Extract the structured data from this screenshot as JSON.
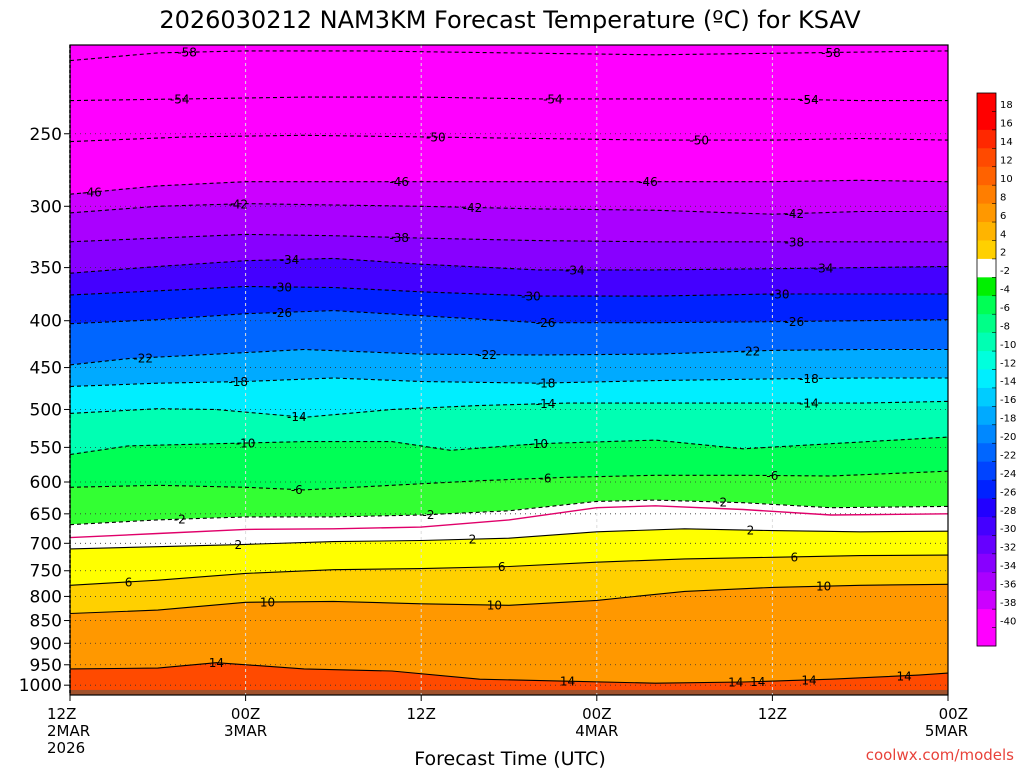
{
  "chart_data": {
    "type": "heatmap",
    "title": "2026030212 NAM3KM Forecast Temperature (ºC) for KSAV",
    "xlabel": "Forecast Time (UTC)",
    "credit": "coolwx.com/models",
    "x_ticks": [
      {
        "hour": 0,
        "lines": [
          "12Z",
          "2MAR",
          "2026"
        ]
      },
      {
        "hour": 12,
        "lines": [
          "00Z",
          "3MAR"
        ]
      },
      {
        "hour": 24,
        "lines": [
          "12Z"
        ]
      },
      {
        "hour": 36,
        "lines": [
          "00Z",
          "4MAR"
        ]
      },
      {
        "hour": 48,
        "lines": [
          "12Z"
        ]
      },
      {
        "hour": 60,
        "lines": [
          "00Z",
          "5MAR"
        ]
      }
    ],
    "xlim": [
      0,
      60
    ],
    "ylim": [
      200,
      1025
    ],
    "y_ticks": [
      250,
      300,
      350,
      400,
      450,
      500,
      550,
      600,
      650,
      700,
      750,
      800,
      850,
      900,
      950,
      1000
    ],
    "colorbar_labels": [
      "18",
      "16",
      "14",
      "12",
      "10",
      "8",
      "6",
      "4",
      "2",
      "-2",
      "-4",
      "-6",
      "-8",
      "-10",
      "-12",
      "-14",
      "-16",
      "-18",
      "-20",
      "-22",
      "-24",
      "-26",
      "-28",
      "-30",
      "-32",
      "-34",
      "-36",
      "-38",
      "-40"
    ],
    "colors": {
      "18": "#ff0000",
      "16": "#ff2800",
      "14": "#ff4a00",
      "12": "#ff6200",
      "10": "#ff7e00",
      "8": "#ff9800",
      "6": "#ffb400",
      "4": "#ffd000",
      "2": "#ffff00",
      "0": "#ffffff",
      "-2": "#33ff33",
      "-4": "#00f000",
      "-6": "#00ff55",
      "-8": "#00ff88",
      "-10": "#00ffb3",
      "-12": "#00ffdd",
      "-14": "#00eeff",
      "-16": "#00ccff",
      "-18": "#00aaff",
      "-20": "#0088ff",
      "-22": "#0066ff",
      "-24": "#0044ff",
      "-26": "#0022ff",
      "-28": "#2200ff",
      "-30": "#4400ff",
      "-32": "#6600ff",
      "-34": "#8800ff",
      "-36": "#aa00ff",
      "-38": "#cc00ff",
      "-40": "#ff00ff",
      "surface": "#a0522d",
      "freezing_line": "#e0006a"
    },
    "isotherms": [
      {
        "value": -58,
        "profile": [
          [
            0,
            208
          ],
          [
            6,
            204
          ],
          [
            12,
            203
          ],
          [
            20,
            203
          ],
          [
            30,
            204
          ],
          [
            40,
            205
          ],
          [
            50,
            204
          ],
          [
            60,
            203
          ]
        ],
        "labels": [
          [
            8,
            -58
          ],
          [
            52,
            -58
          ]
        ]
      },
      {
        "value": -54,
        "profile": [
          [
            0,
            230
          ],
          [
            8,
            229
          ],
          [
            16,
            228
          ],
          [
            24,
            228
          ],
          [
            32,
            229
          ],
          [
            40,
            229
          ],
          [
            48,
            229
          ],
          [
            54,
            230
          ],
          [
            60,
            230
          ]
        ],
        "labels": [
          [
            7.5,
            -54
          ],
          [
            33,
            -54
          ],
          [
            50.5,
            -54
          ]
        ]
      },
      {
        "value": -50,
        "profile": [
          [
            0,
            255
          ],
          [
            8,
            252
          ],
          [
            16,
            251
          ],
          [
            24,
            252
          ],
          [
            32,
            253
          ],
          [
            40,
            254
          ],
          [
            48,
            254
          ],
          [
            54,
            253
          ],
          [
            60,
            254
          ]
        ],
        "labels": [
          [
            25,
            -50
          ],
          [
            43,
            -50
          ]
        ]
      },
      {
        "value": -46,
        "profile": [
          [
            0,
            291
          ],
          [
            6,
            285
          ],
          [
            12,
            282
          ],
          [
            18,
            282
          ],
          [
            24,
            282
          ],
          [
            32,
            282
          ],
          [
            40,
            282
          ],
          [
            48,
            282
          ],
          [
            54,
            281
          ],
          [
            60,
            282
          ]
        ],
        "labels": [
          [
            1.5,
            -46
          ],
          [
            22.5,
            -46
          ],
          [
            39.5,
            -46
          ]
        ]
      },
      {
        "value": -42,
        "profile": [
          [
            0,
            305
          ],
          [
            6,
            300
          ],
          [
            12,
            298
          ],
          [
            18,
            299
          ],
          [
            24,
            300
          ],
          [
            32,
            302
          ],
          [
            40,
            303
          ],
          [
            48,
            306
          ],
          [
            54,
            304
          ],
          [
            60,
            304
          ]
        ],
        "labels": [
          [
            11.5,
            -42
          ],
          [
            27.5,
            -42
          ],
          [
            49.5,
            -42
          ]
        ]
      },
      {
        "value": -38,
        "profile": [
          [
            0,
            328
          ],
          [
            6,
            325
          ],
          [
            12,
            322
          ],
          [
            18,
            323
          ],
          [
            24,
            325
          ],
          [
            32,
            327
          ],
          [
            40,
            328
          ],
          [
            48,
            328
          ],
          [
            54,
            328
          ],
          [
            60,
            328
          ]
        ],
        "labels": [
          [
            22.5,
            -38
          ],
          [
            49.5,
            -38
          ]
        ]
      },
      {
        "value": -34,
        "profile": [
          [
            0,
            355
          ],
          [
            6,
            349
          ],
          [
            12,
            344
          ],
          [
            18,
            342
          ],
          [
            24,
            347
          ],
          [
            32,
            352
          ],
          [
            40,
            352
          ],
          [
            48,
            351
          ],
          [
            54,
            350
          ],
          [
            60,
            349
          ]
        ],
        "labels": [
          [
            15,
            -34
          ],
          [
            34.5,
            -34
          ],
          [
            51.5,
            -34
          ]
        ]
      },
      {
        "value": -30,
        "profile": [
          [
            0,
            375
          ],
          [
            6,
            371
          ],
          [
            12,
            367
          ],
          [
            18,
            368
          ],
          [
            24,
            372
          ],
          [
            32,
            376
          ],
          [
            40,
            376
          ],
          [
            48,
            374
          ],
          [
            54,
            374
          ],
          [
            60,
            374
          ]
        ],
        "labels": [
          [
            14.5,
            -30
          ],
          [
            31.5,
            -30
          ],
          [
            48.5,
            -30
          ]
        ]
      },
      {
        "value": -26,
        "profile": [
          [
            0,
            403
          ],
          [
            6,
            399
          ],
          [
            12,
            393
          ],
          [
            18,
            390
          ],
          [
            24,
            395
          ],
          [
            32,
            402
          ],
          [
            40,
            402
          ],
          [
            48,
            401
          ],
          [
            54,
            400
          ],
          [
            60,
            399
          ]
        ],
        "labels": [
          [
            14.5,
            -26
          ],
          [
            32.5,
            -26
          ],
          [
            49.5,
            -26
          ]
        ]
      },
      {
        "value": -22,
        "profile": [
          [
            0,
            447
          ],
          [
            4,
            440
          ],
          [
            10,
            435
          ],
          [
            16,
            430
          ],
          [
            24,
            435
          ],
          [
            32,
            436
          ],
          [
            40,
            435
          ],
          [
            48,
            431
          ],
          [
            54,
            430
          ],
          [
            60,
            430
          ]
        ],
        "labels": [
          [
            5,
            -22
          ],
          [
            28.5,
            -22
          ],
          [
            46.5,
            -22
          ]
        ]
      },
      {
        "value": -18,
        "profile": [
          [
            0,
            472
          ],
          [
            6,
            468
          ],
          [
            12,
            466
          ],
          [
            18,
            462
          ],
          [
            24,
            466
          ],
          [
            32,
            468
          ],
          [
            40,
            465
          ],
          [
            48,
            463
          ],
          [
            54,
            462
          ],
          [
            60,
            462
          ]
        ],
        "labels": [
          [
            11.5,
            -18
          ],
          [
            32.5,
            -18
          ],
          [
            50.5,
            -18
          ]
        ]
      },
      {
        "value": -14,
        "profile": [
          [
            0,
            505
          ],
          [
            6,
            499
          ],
          [
            10,
            500
          ],
          [
            16,
            510
          ],
          [
            22,
            500
          ],
          [
            28,
            495
          ],
          [
            34,
            492
          ],
          [
            40,
            492
          ],
          [
            48,
            492
          ],
          [
            54,
            492
          ],
          [
            60,
            490
          ]
        ],
        "labels": [
          [
            15.5,
            -14
          ],
          [
            32.5,
            -14
          ],
          [
            50.5,
            -14
          ]
        ]
      },
      {
        "value": -10,
        "profile": [
          [
            0,
            560
          ],
          [
            4,
            548
          ],
          [
            10,
            545
          ],
          [
            16,
            542
          ],
          [
            22,
            542
          ],
          [
            26,
            554
          ],
          [
            32,
            545
          ],
          [
            40,
            540
          ],
          [
            46,
            552
          ],
          [
            52,
            545
          ],
          [
            60,
            536
          ]
        ],
        "labels": [
          [
            12,
            -10
          ],
          [
            32,
            -10
          ]
        ]
      },
      {
        "value": -6,
        "profile": [
          [
            0,
            608
          ],
          [
            6,
            605
          ],
          [
            12,
            608
          ],
          [
            16,
            612
          ],
          [
            22,
            605
          ],
          [
            28,
            598
          ],
          [
            34,
            593
          ],
          [
            40,
            590
          ],
          [
            46,
            590
          ],
          [
            52,
            591
          ],
          [
            60,
            584
          ]
        ],
        "labels": [
          [
            15.5,
            -6
          ],
          [
            32.5,
            -6
          ],
          [
            48,
            -6
          ]
        ]
      },
      {
        "value": -2,
        "profile": [
          [
            0,
            668
          ],
          [
            6,
            660
          ],
          [
            12,
            655
          ],
          [
            18,
            655
          ],
          [
            24,
            652
          ],
          [
            30,
            645
          ],
          [
            36,
            630
          ],
          [
            40,
            628
          ],
          [
            46,
            632
          ],
          [
            52,
            640
          ],
          [
            60,
            638
          ]
        ],
        "labels": [
          [
            7.5,
            -2
          ],
          [
            24.5,
            -2
          ],
          [
            44.5,
            -2
          ]
        ]
      },
      {
        "value": 2,
        "profile": [
          [
            0,
            710
          ],
          [
            6,
            706
          ],
          [
            12,
            702
          ],
          [
            18,
            697
          ],
          [
            24,
            695
          ],
          [
            30,
            691
          ],
          [
            36,
            680
          ],
          [
            42,
            675
          ],
          [
            48,
            678
          ],
          [
            54,
            680
          ],
          [
            60,
            679
          ]
        ],
        "labels": [
          [
            11.5,
            2
          ],
          [
            27.5,
            2
          ],
          [
            46.5,
            2
          ]
        ]
      },
      {
        "value": 6,
        "profile": [
          [
            0,
            778
          ],
          [
            6,
            768
          ],
          [
            12,
            755
          ],
          [
            18,
            748
          ],
          [
            24,
            746
          ],
          [
            30,
            742
          ],
          [
            36,
            734
          ],
          [
            42,
            728
          ],
          [
            48,
            725
          ],
          [
            54,
            722
          ],
          [
            60,
            721
          ]
        ],
        "labels": [
          [
            4,
            6
          ],
          [
            29.5,
            6
          ],
          [
            49.5,
            6
          ]
        ]
      },
      {
        "value": 10,
        "profile": [
          [
            0,
            835
          ],
          [
            6,
            828
          ],
          [
            12,
            812
          ],
          [
            18,
            810
          ],
          [
            24,
            815
          ],
          [
            30,
            818
          ],
          [
            36,
            808
          ],
          [
            42,
            790
          ],
          [
            48,
            782
          ],
          [
            54,
            778
          ],
          [
            60,
            776
          ]
        ],
        "labels": [
          [
            13.5,
            10
          ],
          [
            29,
            10
          ],
          [
            51.5,
            10
          ]
        ]
      },
      {
        "value": 14,
        "profile": [
          [
            0,
            960
          ],
          [
            6,
            958
          ],
          [
            10,
            945
          ],
          [
            16,
            960
          ],
          [
            22,
            965
          ],
          [
            28,
            985
          ],
          [
            34,
            990
          ],
          [
            40,
            995
          ],
          [
            46,
            992
          ],
          [
            52,
            985
          ],
          [
            58,
            975
          ],
          [
            60,
            970
          ]
        ],
        "labels": [
          [
            10,
            14
          ],
          [
            34,
            14
          ],
          [
            45.5,
            14
          ],
          [
            47,
            14
          ],
          [
            50.5,
            14
          ],
          [
            57,
            14
          ]
        ]
      }
    ],
    "freezing_profile": [
      [
        0,
        690
      ],
      [
        6,
        683
      ],
      [
        12,
        676
      ],
      [
        18,
        675
      ],
      [
        24,
        672
      ],
      [
        30,
        660
      ],
      [
        36,
        640
      ],
      [
        40,
        637
      ],
      [
        46,
        643
      ],
      [
        52,
        652
      ],
      [
        60,
        650
      ]
    ]
  }
}
